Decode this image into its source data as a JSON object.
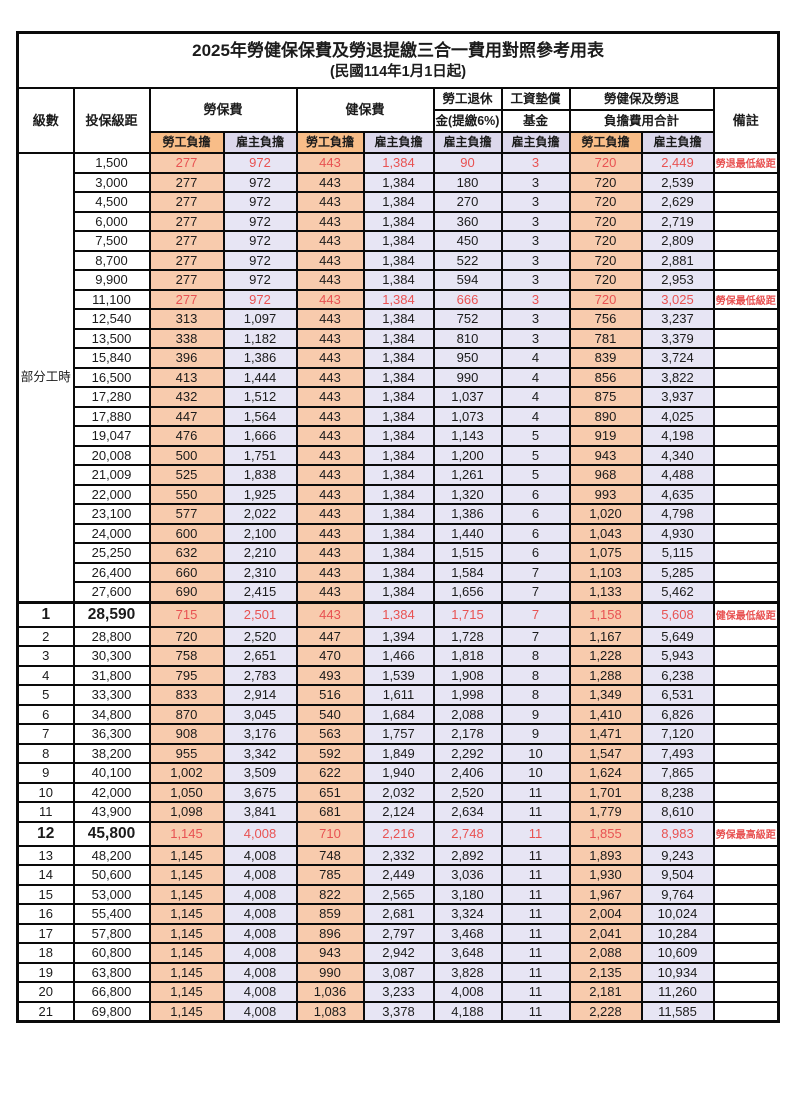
{
  "title": "2025年勞健保保費及勞退提繳三合一費用對照參考用表",
  "subtitle": "(民國114年1月1日起)",
  "header": {
    "level": "級數",
    "salary_bracket": "投保級距",
    "labor_insurance": "勞保費",
    "health_insurance": "健保費",
    "pension_line1": "勞工退休",
    "pension_line2": "金(提繳6%)",
    "wage_fund_line1": "工資墊償",
    "wage_fund_line2": "基金",
    "total_line1": "勞健保及勞退",
    "total_line2": "負擔費用合計",
    "note": "備註",
    "worker_share": "勞工負擔",
    "employer_share": "雇主負擔"
  },
  "left_merged_label": "部分工時",
  "colors": {
    "worker_header": "#f8bd88",
    "worker_cell": "#f8cbad",
    "employer_header": "#dcd8ec",
    "employer_cell": "#e7e5f4",
    "highlight_text": "#e85252",
    "border": "#0a0a0a"
  },
  "value_columns": [
    "勞保費-勞工負擔",
    "勞保費-雇主負擔",
    "健保費-勞工負擔",
    "健保費-雇主負擔",
    "勞工退休金-雇主負擔",
    "工資墊償基金-雇主負擔",
    "合計-勞工負擔",
    "合計-雇主負擔"
  ],
  "rows": [
    {
      "level": "",
      "salary": "1,500",
      "values": [
        "277",
        "972",
        "443",
        "1,384",
        "90",
        "3",
        "720",
        "2,449"
      ],
      "note": "勞退最低級距",
      "red": true,
      "big": false
    },
    {
      "level": "",
      "salary": "3,000",
      "values": [
        "277",
        "972",
        "443",
        "1,384",
        "180",
        "3",
        "720",
        "2,539"
      ],
      "note": "",
      "red": false,
      "big": false
    },
    {
      "level": "",
      "salary": "4,500",
      "values": [
        "277",
        "972",
        "443",
        "1,384",
        "270",
        "3",
        "720",
        "2,629"
      ],
      "note": "",
      "red": false,
      "big": false
    },
    {
      "level": "",
      "salary": "6,000",
      "values": [
        "277",
        "972",
        "443",
        "1,384",
        "360",
        "3",
        "720",
        "2,719"
      ],
      "note": "",
      "red": false,
      "big": false
    },
    {
      "level": "",
      "salary": "7,500",
      "values": [
        "277",
        "972",
        "443",
        "1,384",
        "450",
        "3",
        "720",
        "2,809"
      ],
      "note": "",
      "red": false,
      "big": false
    },
    {
      "level": "",
      "salary": "8,700",
      "values": [
        "277",
        "972",
        "443",
        "1,384",
        "522",
        "3",
        "720",
        "2,881"
      ],
      "note": "",
      "red": false,
      "big": false
    },
    {
      "level": "",
      "salary": "9,900",
      "values": [
        "277",
        "972",
        "443",
        "1,384",
        "594",
        "3",
        "720",
        "2,953"
      ],
      "note": "",
      "red": false,
      "big": false
    },
    {
      "level": "",
      "salary": "11,100",
      "values": [
        "277",
        "972",
        "443",
        "1,384",
        "666",
        "3",
        "720",
        "3,025"
      ],
      "note": "勞保最低級距",
      "red": true,
      "big": false
    },
    {
      "level": "",
      "salary": "12,540",
      "values": [
        "313",
        "1,097",
        "443",
        "1,384",
        "752",
        "3",
        "756",
        "3,237"
      ],
      "note": "",
      "red": false,
      "big": false
    },
    {
      "level": "",
      "salary": "13,500",
      "values": [
        "338",
        "1,182",
        "443",
        "1,384",
        "810",
        "3",
        "781",
        "3,379"
      ],
      "note": "",
      "red": false,
      "big": false
    },
    {
      "level": "",
      "salary": "15,840",
      "values": [
        "396",
        "1,386",
        "443",
        "1,384",
        "950",
        "4",
        "839",
        "3,724"
      ],
      "note": "",
      "red": false,
      "big": false
    },
    {
      "level": "",
      "salary": "16,500",
      "values": [
        "413",
        "1,444",
        "443",
        "1,384",
        "990",
        "4",
        "856",
        "3,822"
      ],
      "note": "",
      "red": false,
      "big": false
    },
    {
      "level": "",
      "salary": "17,280",
      "values": [
        "432",
        "1,512",
        "443",
        "1,384",
        "1,037",
        "4",
        "875",
        "3,937"
      ],
      "note": "",
      "red": false,
      "big": false
    },
    {
      "level": "",
      "salary": "17,880",
      "values": [
        "447",
        "1,564",
        "443",
        "1,384",
        "1,073",
        "4",
        "890",
        "4,025"
      ],
      "note": "",
      "red": false,
      "big": false
    },
    {
      "level": "",
      "salary": "19,047",
      "values": [
        "476",
        "1,666",
        "443",
        "1,384",
        "1,143",
        "5",
        "919",
        "4,198"
      ],
      "note": "",
      "red": false,
      "big": false
    },
    {
      "level": "",
      "salary": "20,008",
      "values": [
        "500",
        "1,751",
        "443",
        "1,384",
        "1,200",
        "5",
        "943",
        "4,340"
      ],
      "note": "",
      "red": false,
      "big": false
    },
    {
      "level": "",
      "salary": "21,009",
      "values": [
        "525",
        "1,838",
        "443",
        "1,384",
        "1,261",
        "5",
        "968",
        "4,488"
      ],
      "note": "",
      "red": false,
      "big": false
    },
    {
      "level": "",
      "salary": "22,000",
      "values": [
        "550",
        "1,925",
        "443",
        "1,384",
        "1,320",
        "6",
        "993",
        "4,635"
      ],
      "note": "",
      "red": false,
      "big": false
    },
    {
      "level": "",
      "salary": "23,100",
      "values": [
        "577",
        "2,022",
        "443",
        "1,384",
        "1,386",
        "6",
        "1,020",
        "4,798"
      ],
      "note": "",
      "red": false,
      "big": false
    },
    {
      "level": "",
      "salary": "24,000",
      "values": [
        "600",
        "2,100",
        "443",
        "1,384",
        "1,440",
        "6",
        "1,043",
        "4,930"
      ],
      "note": "",
      "red": false,
      "big": false
    },
    {
      "level": "",
      "salary": "25,250",
      "values": [
        "632",
        "2,210",
        "443",
        "1,384",
        "1,515",
        "6",
        "1,075",
        "5,115"
      ],
      "note": "",
      "red": false,
      "big": false
    },
    {
      "level": "",
      "salary": "26,400",
      "values": [
        "660",
        "2,310",
        "443",
        "1,384",
        "1,584",
        "7",
        "1,103",
        "5,285"
      ],
      "note": "",
      "red": false,
      "big": false
    },
    {
      "level": "",
      "salary": "27,600",
      "values": [
        "690",
        "2,415",
        "443",
        "1,384",
        "1,656",
        "7",
        "1,133",
        "5,462"
      ],
      "note": "",
      "red": false,
      "big": false
    },
    {
      "level": "1",
      "salary": "28,590",
      "values": [
        "715",
        "2,501",
        "443",
        "1,384",
        "1,715",
        "7",
        "1,158",
        "5,608"
      ],
      "note": "健保最低級距",
      "red": true,
      "big": true
    },
    {
      "level": "2",
      "salary": "28,800",
      "values": [
        "720",
        "2,520",
        "447",
        "1,394",
        "1,728",
        "7",
        "1,167",
        "5,649"
      ],
      "note": "",
      "red": false,
      "big": false
    },
    {
      "level": "3",
      "salary": "30,300",
      "values": [
        "758",
        "2,651",
        "470",
        "1,466",
        "1,818",
        "8",
        "1,228",
        "5,943"
      ],
      "note": "",
      "red": false,
      "big": false
    },
    {
      "level": "4",
      "salary": "31,800",
      "values": [
        "795",
        "2,783",
        "493",
        "1,539",
        "1,908",
        "8",
        "1,288",
        "6,238"
      ],
      "note": "",
      "red": false,
      "big": false
    },
    {
      "level": "5",
      "salary": "33,300",
      "values": [
        "833",
        "2,914",
        "516",
        "1,611",
        "1,998",
        "8",
        "1,349",
        "6,531"
      ],
      "note": "",
      "red": false,
      "big": false
    },
    {
      "level": "6",
      "salary": "34,800",
      "values": [
        "870",
        "3,045",
        "540",
        "1,684",
        "2,088",
        "9",
        "1,410",
        "6,826"
      ],
      "note": "",
      "red": false,
      "big": false
    },
    {
      "level": "7",
      "salary": "36,300",
      "values": [
        "908",
        "3,176",
        "563",
        "1,757",
        "2,178",
        "9",
        "1,471",
        "7,120"
      ],
      "note": "",
      "red": false,
      "big": false
    },
    {
      "level": "8",
      "salary": "38,200",
      "values": [
        "955",
        "3,342",
        "592",
        "1,849",
        "2,292",
        "10",
        "1,547",
        "7,493"
      ],
      "note": "",
      "red": false,
      "big": false
    },
    {
      "level": "9",
      "salary": "40,100",
      "values": [
        "1,002",
        "3,509",
        "622",
        "1,940",
        "2,406",
        "10",
        "1,624",
        "7,865"
      ],
      "note": "",
      "red": false,
      "big": false
    },
    {
      "level": "10",
      "salary": "42,000",
      "values": [
        "1,050",
        "3,675",
        "651",
        "2,032",
        "2,520",
        "11",
        "1,701",
        "8,238"
      ],
      "note": "",
      "red": false,
      "big": false
    },
    {
      "level": "11",
      "salary": "43,900",
      "values": [
        "1,098",
        "3,841",
        "681",
        "2,124",
        "2,634",
        "11",
        "1,779",
        "8,610"
      ],
      "note": "",
      "red": false,
      "big": false
    },
    {
      "level": "12",
      "salary": "45,800",
      "values": [
        "1,145",
        "4,008",
        "710",
        "2,216",
        "2,748",
        "11",
        "1,855",
        "8,983"
      ],
      "note": "勞保最高級距",
      "red": true,
      "big": true
    },
    {
      "level": "13",
      "salary": "48,200",
      "values": [
        "1,145",
        "4,008",
        "748",
        "2,332",
        "2,892",
        "11",
        "1,893",
        "9,243"
      ],
      "note": "",
      "red": false,
      "big": false
    },
    {
      "level": "14",
      "salary": "50,600",
      "values": [
        "1,145",
        "4,008",
        "785",
        "2,449",
        "3,036",
        "11",
        "1,930",
        "9,504"
      ],
      "note": "",
      "red": false,
      "big": false
    },
    {
      "level": "15",
      "salary": "53,000",
      "values": [
        "1,145",
        "4,008",
        "822",
        "2,565",
        "3,180",
        "11",
        "1,967",
        "9,764"
      ],
      "note": "",
      "red": false,
      "big": false
    },
    {
      "level": "16",
      "salary": "55,400",
      "values": [
        "1,145",
        "4,008",
        "859",
        "2,681",
        "3,324",
        "11",
        "2,004",
        "10,024"
      ],
      "note": "",
      "red": false,
      "big": false
    },
    {
      "level": "17",
      "salary": "57,800",
      "values": [
        "1,145",
        "4,008",
        "896",
        "2,797",
        "3,468",
        "11",
        "2,041",
        "10,284"
      ],
      "note": "",
      "red": false,
      "big": false
    },
    {
      "level": "18",
      "salary": "60,800",
      "values": [
        "1,145",
        "4,008",
        "943",
        "2,942",
        "3,648",
        "11",
        "2,088",
        "10,609"
      ],
      "note": "",
      "red": false,
      "big": false
    },
    {
      "level": "19",
      "salary": "63,800",
      "values": [
        "1,145",
        "4,008",
        "990",
        "3,087",
        "3,828",
        "11",
        "2,135",
        "10,934"
      ],
      "note": "",
      "red": false,
      "big": false
    },
    {
      "level": "20",
      "salary": "66,800",
      "values": [
        "1,145",
        "4,008",
        "1,036",
        "3,233",
        "4,008",
        "11",
        "2,181",
        "11,260"
      ],
      "note": "",
      "red": false,
      "big": false
    },
    {
      "level": "21",
      "salary": "69,800",
      "values": [
        "1,145",
        "4,008",
        "1,083",
        "3,378",
        "4,188",
        "11",
        "2,228",
        "11,585"
      ],
      "note": "",
      "red": false,
      "big": false
    }
  ]
}
